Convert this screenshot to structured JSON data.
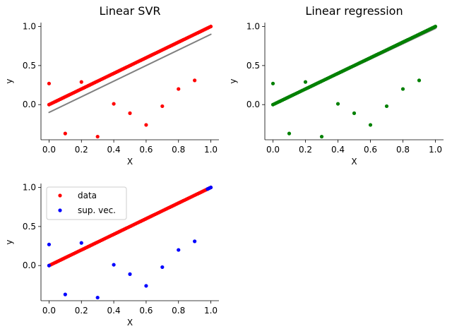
{
  "chart_data": [
    {
      "type": "scatter",
      "title": "Linear SVR",
      "xlabel": "X",
      "ylabel": "y",
      "xlim": [
        -0.05,
        1.05
      ],
      "ylim": [
        -0.45,
        1.05
      ],
      "xticks": [
        "0.0",
        "0.2",
        "0.4",
        "0.6",
        "0.8",
        "1.0"
      ],
      "yticks": [
        "0.0",
        "0.5",
        "1.0"
      ],
      "grid": false,
      "series": [
        {
          "kind": "points",
          "color": "#ff0000",
          "x": [
            0.0,
            0.1,
            0.2,
            0.3,
            0.4,
            0.5,
            0.6,
            0.7,
            0.8,
            0.9
          ],
          "y": [
            0.27,
            -0.37,
            0.29,
            -0.41,
            0.01,
            -0.11,
            -0.26,
            -0.02,
            0.2,
            0.31
          ]
        },
        {
          "kind": "dense",
          "color": "#ff0000",
          "x_range": [
            0.0,
            1.0
          ],
          "slope": 1.0,
          "intercept": 0.0,
          "count": 100
        },
        {
          "kind": "line",
          "color": "#808080",
          "x": [
            0.0,
            1.0
          ],
          "y": [
            -0.1,
            0.9
          ]
        }
      ]
    },
    {
      "type": "scatter",
      "title": "Linear regression",
      "xlabel": "X",
      "ylabel": "y",
      "xlim": [
        -0.05,
        1.05
      ],
      "ylim": [
        -0.45,
        1.05
      ],
      "xticks": [
        "0.0",
        "0.2",
        "0.4",
        "0.6",
        "0.8",
        "1.0"
      ],
      "yticks": [
        "0.0",
        "0.5",
        "1.0"
      ],
      "grid": false,
      "series": [
        {
          "kind": "points",
          "color": "#008000",
          "x": [
            0.0,
            0.1,
            0.2,
            0.3,
            0.4,
            0.5,
            0.6,
            0.7,
            0.8,
            0.9
          ],
          "y": [
            0.27,
            -0.37,
            0.29,
            -0.41,
            0.01,
            -0.11,
            -0.26,
            -0.02,
            0.2,
            0.31
          ]
        },
        {
          "kind": "line",
          "color": "#808080",
          "width": 3,
          "x": [
            0.0,
            1.0
          ],
          "y": [
            0.0,
            0.98
          ]
        },
        {
          "kind": "dense",
          "color": "#008000",
          "x_range": [
            0.0,
            1.0
          ],
          "slope": 1.0,
          "intercept": 0.0,
          "count": 100
        }
      ]
    },
    {
      "type": "scatter",
      "title": "",
      "xlabel": "X",
      "ylabel": "y",
      "xlim": [
        -0.05,
        1.05
      ],
      "ylim": [
        -0.45,
        1.05
      ],
      "xticks": [
        "0.0",
        "0.2",
        "0.4",
        "0.6",
        "0.8",
        "1.0"
      ],
      "yticks": [
        "0.0",
        "0.5",
        "1.0"
      ],
      "grid": false,
      "legend": {
        "placement": "upper-left",
        "entries": [
          {
            "label": "data",
            "color": "#ff0000"
          },
          {
            "label": "sup. vec.",
            "color": "#0000ff"
          }
        ]
      },
      "series": [
        {
          "kind": "dense",
          "color": "#ff0000",
          "x_range": [
            0.0,
            1.0
          ],
          "slope": 1.0,
          "intercept": 0.0,
          "count": 100
        },
        {
          "kind": "points",
          "color": "#0000ff",
          "x": [
            0.0,
            0.1,
            0.2,
            0.3,
            0.4,
            0.5,
            0.6,
            0.7,
            0.8,
            0.9,
            0.0,
            0.98,
            0.99,
            1.0
          ],
          "y": [
            0.27,
            -0.37,
            0.29,
            -0.41,
            0.01,
            -0.11,
            -0.26,
            -0.02,
            0.2,
            0.31,
            0.0,
            0.98,
            0.99,
            1.0
          ]
        }
      ]
    }
  ]
}
